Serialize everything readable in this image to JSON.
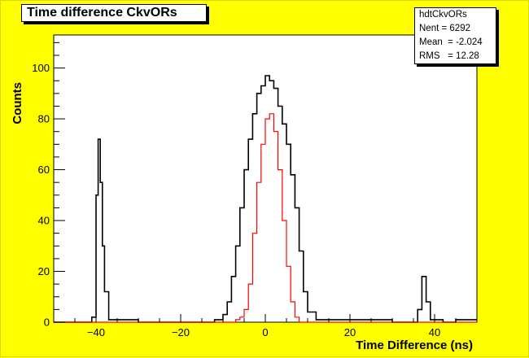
{
  "title": "Time difference CkvORs",
  "stats": {
    "name": "hdtCkvORs",
    "entries_label": "Nent = 6292",
    "mean_label": "Mean  = -2.024",
    "rms_label": "RMS   = 12.28"
  },
  "colors": {
    "background": "#ffff00",
    "plot_bg": "#ffffff",
    "series_all": "#000000",
    "series_matched": "#ff0000"
  },
  "chart_data": {
    "type": "area",
    "title": "Time difference CkvORs",
    "xlabel": "Time Difference (ns)",
    "ylabel": "Counts",
    "xlim": [
      -50,
      50
    ],
    "ylim": [
      0,
      113
    ],
    "xticks": [
      -40,
      -20,
      0,
      20,
      40
    ],
    "yticks": [
      0,
      20,
      40,
      60,
      80,
      100
    ],
    "grid": false,
    "series": [
      {
        "color": "#000000",
        "x": [
          -50,
          -41,
          -40,
          -39.5,
          -39,
          -38.5,
          -38,
          -37,
          -30,
          -12,
          -10,
          -9,
          -8,
          -7,
          -6,
          -5,
          -4,
          -3,
          -2,
          -1,
          0,
          1,
          2,
          3,
          4,
          5,
          6,
          7,
          8,
          9,
          10,
          12,
          30,
          36,
          37,
          38,
          39,
          42,
          45,
          50
        ],
        "y": [
          0,
          2,
          50,
          72,
          55,
          30,
          12,
          1,
          0,
          1,
          3,
          8,
          18,
          30,
          45,
          60,
          72,
          82,
          90,
          93,
          97,
          95,
          92,
          85,
          78,
          70,
          58,
          45,
          28,
          12,
          4,
          1,
          0,
          5,
          18,
          8,
          1,
          0,
          1,
          1
        ]
      },
      {
        "color": "#ff0000",
        "x": [
          -50,
          -8,
          -7,
          -6,
          -5,
          -4,
          -3,
          -2,
          -1,
          0,
          1,
          2,
          3,
          4,
          5,
          6,
          7,
          8,
          50
        ],
        "y": [
          0,
          0,
          1,
          2,
          5,
          15,
          35,
          55,
          70,
          80,
          82,
          75,
          60,
          40,
          22,
          8,
          2,
          0,
          0
        ]
      }
    ]
  }
}
